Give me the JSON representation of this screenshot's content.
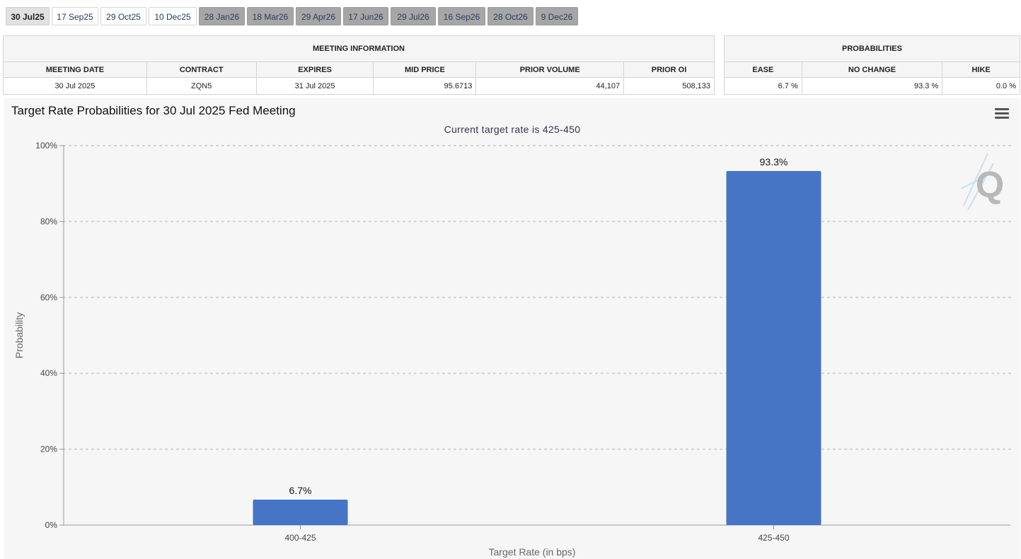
{
  "tabs": [
    {
      "label": "30 Jul25",
      "state": "selected"
    },
    {
      "label": "17 Sep25",
      "state": "normal"
    },
    {
      "label": "29 Oct25",
      "state": "normal"
    },
    {
      "label": "10 Dec25",
      "state": "normal"
    },
    {
      "label": "28 Jan26",
      "state": "disabled"
    },
    {
      "label": "18 Mar26",
      "state": "disabled"
    },
    {
      "label": "29 Apr26",
      "state": "disabled"
    },
    {
      "label": "17 Jun26",
      "state": "disabled"
    },
    {
      "label": "29 Jul26",
      "state": "disabled"
    },
    {
      "label": "16 Sep26",
      "state": "disabled"
    },
    {
      "label": "28 Oct26",
      "state": "disabled"
    },
    {
      "label": "9 Dec26",
      "state": "disabled"
    }
  ],
  "meeting_info": {
    "header": "MEETING INFORMATION",
    "columns": [
      "MEETING DATE",
      "CONTRACT",
      "EXPIRES",
      "MID PRICE",
      "PRIOR VOLUME",
      "PRIOR OI"
    ],
    "row": [
      "30 Jul 2025",
      "ZQN5",
      "31 Jul 2025",
      "95.6713",
      "44,107",
      "508,133"
    ]
  },
  "probabilities": {
    "header": "PROBABILITIES",
    "columns": [
      "EASE",
      "NO CHANGE",
      "HIKE"
    ],
    "row": [
      "6.7 %",
      "93.3 %",
      "0.0 %"
    ]
  },
  "chart": {
    "menu_icon": "hamburger-menu-icon",
    "watermark": "Q",
    "bar_color": "#4575c4"
  },
  "chart_data": {
    "type": "bar",
    "title": "Target Rate Probabilities for 30 Jul 2025 Fed Meeting",
    "subtitle": "Current target rate is 425-450",
    "xlabel": "Target Rate (in bps)",
    "ylabel": "Probability",
    "categories": [
      "400-425",
      "425-450"
    ],
    "values": [
      6.7,
      93.3
    ],
    "data_labels": [
      "6.7%",
      "93.3%"
    ],
    "ylim": [
      0,
      100
    ],
    "yticks": [
      0,
      20,
      40,
      60,
      80,
      100
    ],
    "ytick_labels": [
      "0%",
      "20%",
      "40%",
      "60%",
      "80%",
      "100%"
    ],
    "grid": true,
    "legend": "none"
  }
}
